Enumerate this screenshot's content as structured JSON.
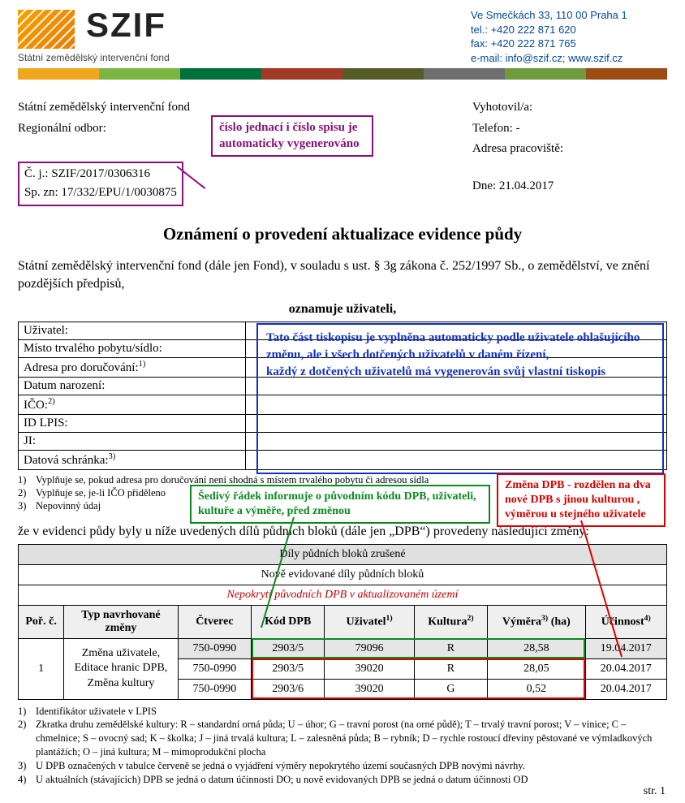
{
  "header": {
    "logo_big": "SZIF",
    "logo_sub": "Státní zemědělský intervenční fond",
    "contact": {
      "addr": "Ve Smečkách 33, 110 00 Praha 1",
      "tel_label": "tel.: ",
      "tel": "+420 222 871 620",
      "fax_label": "fax: ",
      "fax": "+420 222 871 765",
      "email_label": "e-mail: ",
      "email": "info@szif.cz",
      "sep": "; ",
      "www": "www.szif.cz"
    },
    "stripe_colors": [
      "#efa71e",
      "#7bb642",
      "#00713d",
      "#a03926",
      "#555c28",
      "#6e6e6e",
      "#6f9a3e",
      "#9d4d14"
    ]
  },
  "top": {
    "left": {
      "org": "Státní zemědělský intervenční fond",
      "region_label": "Regionální odbor: ",
      "cj_label": "Č. j.: ",
      "cj": "SZIF/2017/0306316",
      "sp_label": "Sp. zn: ",
      "sp": "17/332/EPU/1/0030875"
    },
    "right": {
      "vyhotovil": "Vyhotovil/a:",
      "telefon": "Telefon: -",
      "adresa": "Adresa pracoviště:",
      "dne_label": "Dne: ",
      "dne": "21.04.2017"
    }
  },
  "callouts": {
    "magenta": "číslo jednací i číslo spisu je automaticky vygenerováno",
    "blue": "Tato část tiskopisu  je vyplněna automaticky podle uživatele ohlašujícího změnu, ale i všech dotčených uživatelů v daném řízení,\nkaždý z dotčených uživatelů má vygenerován svůj vlastní tiskopis",
    "green": "Šedivý řádek informuje o původním kódu DPB, uživateli, kultuře a výměře, před změnou",
    "red": "Změna DPB - rozdělen na dva nové DPB s jinou kulturou , výměrou u stejného uživatele"
  },
  "title": "Oznámení o provedení aktualizace evidence půdy",
  "intro": "Státní zemědělský intervenční fond (dále jen Fond), v souladu s ust. § 3g zákona č. 252/1997 Sb., o zemědělství, ve znění pozdějších předpisů,",
  "announce": "oznamuje uživateli,",
  "user_rows": [
    "Uživatel:",
    "Místo trvalého pobytu/sídlo:",
    "Adresa pro doručování:1)",
    "Datum narození:",
    "IČO:2)",
    "ID LPIS:",
    "JI:",
    "Datová schránka:3)"
  ],
  "user_row_sups": [
    "",
    "",
    "1)",
    "",
    "2)",
    "",
    "",
    "3)"
  ],
  "user_row_plain": [
    "Uživatel:",
    "Místo trvalého pobytu/sídlo:",
    "Adresa pro doručování:",
    "Datum narození:",
    "IČO:",
    "ID LPIS:",
    "JI:",
    "Datová schránka:"
  ],
  "user_notes": [
    [
      "1)",
      "Vyplňuje se, pokud adresa pro doručování není shodná s místem trvalého pobytu či adresou sídla"
    ],
    [
      "2)",
      "Vyplňuje se, je-li IČO přiděleno"
    ],
    [
      "3)",
      "Nepovinný údaj"
    ]
  ],
  "changes_intro": "že v evidenci půdy byly u níže uvedených dílů půdních bloků (dále jen „DPB“) provedeny následující změny:",
  "table": {
    "band1": "Díly půdních bloků zrušené",
    "band2": "Nově evidované díly půdních bloků",
    "band3": "Nepokrytí původních DPB v aktualizovaném území",
    "cols": {
      "por": "Poř. č.",
      "typ": "Typ navrhované změny",
      "ctverec": "Čtverec",
      "kod": "Kód DPB",
      "uziv": "Uživatel",
      "uziv_sup": "1)",
      "kult": "Kultura",
      "kult_sup": "2)",
      "vym": "Výměra",
      "vym_sup": "3)",
      "vym_unit": " (ha)",
      "ucin": "Účinnost",
      "ucin_sup": "4)"
    },
    "row_label_lines": [
      "Změna uživatele,",
      "Editace hranic DPB,",
      "Změna kultury"
    ],
    "row_num": "1",
    "rows": [
      {
        "ctverec": "750-0990",
        "kod": "2903/5",
        "uziv": "79096",
        "kult": "R",
        "vym": "28,58",
        "ucin": "19.04.2017",
        "orig": true
      },
      {
        "ctverec": "750-0990",
        "kod": "2903/5",
        "uziv": "39020",
        "kult": "R",
        "vym": "28,05",
        "ucin": "20.04.2017",
        "orig": false
      },
      {
        "ctverec": "750-0990",
        "kod": "2903/6",
        "uziv": "39020",
        "kult": "G",
        "vym": "0,52",
        "ucin": "20.04.2017",
        "orig": false
      }
    ]
  },
  "foot_notes": [
    [
      "1)",
      "Identifikátor uživatele v LPIS"
    ],
    [
      "2)",
      "Zkratka druhu zemědělské kultury: R – standardní orná půda; U – úhor; G – travní porost (na orné půdě); T – trvalý travní porost; V – vinice; C – chmelnice; S – ovocný sad; K – školka; J – jiná trvalá kultura; L – zalesněná půda; B – rybník; D – rychle rostoucí dřeviny pěstované ve výmladkových plantážích; O – jiná kultura; M – mimoprodukční plocha"
    ],
    [
      "3)",
      "U DPB označených v tabulce červeně se jedná o vyjádření výměry nepokrytého území současných DPB novými návrhy."
    ],
    [
      "4)",
      "U aktuálních (stávajících) DPB se jedná o datum účinnosti DO; u nově evidovaných DPB se jedná o datum účinnosti OD"
    ]
  ],
  "page_label": "str. 1",
  "colors": {
    "magenta": "#8a1079",
    "blue": "#1030c0",
    "green": "#0a8a1f",
    "red": "#d80000",
    "link": "#004a9a"
  }
}
